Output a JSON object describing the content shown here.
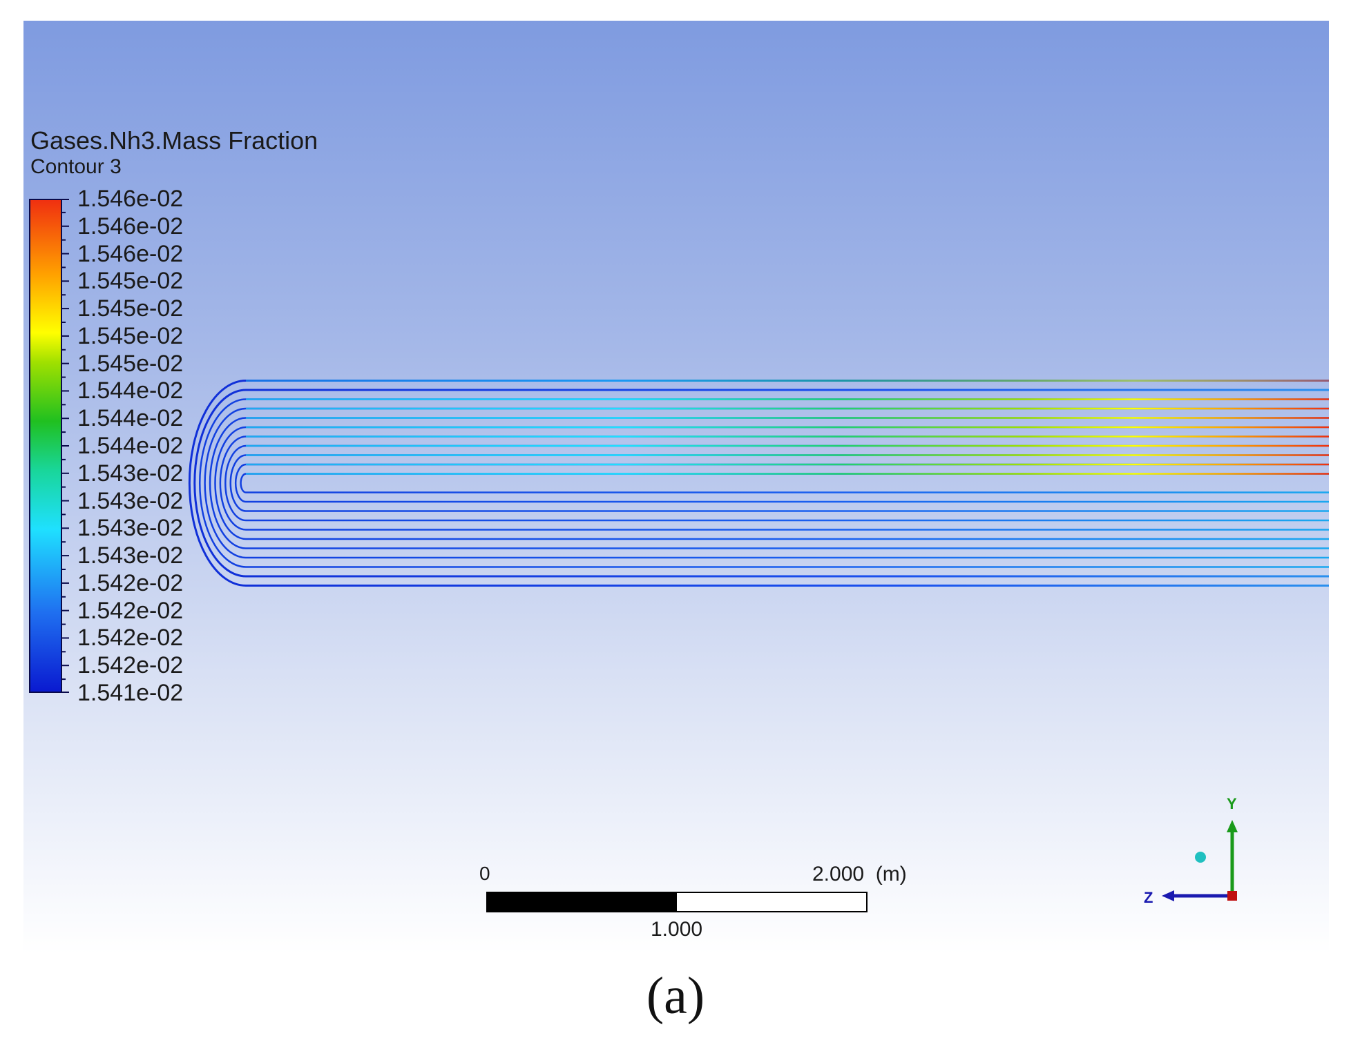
{
  "legend": {
    "title": "Gases.Nh3.Mass Fraction",
    "subtitle": "Contour 3",
    "labels": [
      "1.546e-02",
      "1.546e-02",
      "1.546e-02",
      "1.545e-02",
      "1.545e-02",
      "1.545e-02",
      "1.545e-02",
      "1.544e-02",
      "1.544e-02",
      "1.544e-02",
      "1.543e-02",
      "1.543e-02",
      "1.543e-02",
      "1.543e-02",
      "1.542e-02",
      "1.542e-02",
      "1.542e-02",
      "1.542e-02",
      "1.541e-02"
    ],
    "colormap": [
      "#0a1ad0",
      "#1f6ff0",
      "#1fe0ff",
      "#19d69a",
      "#20c020",
      "#a0e000",
      "#ffff00",
      "#ffa000",
      "#f03010"
    ]
  },
  "scale": {
    "zero_label": "0",
    "max_label": "2.000",
    "unit_label": "(m)",
    "mid_label": "1.000"
  },
  "axes": {
    "y_label": "Y",
    "z_label": "Z",
    "y_color": "#1a9a1a",
    "z_color": "#1a1ab0",
    "origin_color": "#c01010",
    "x_marker_color": "#20c0c0"
  },
  "figure": {
    "label": "(a)"
  }
}
